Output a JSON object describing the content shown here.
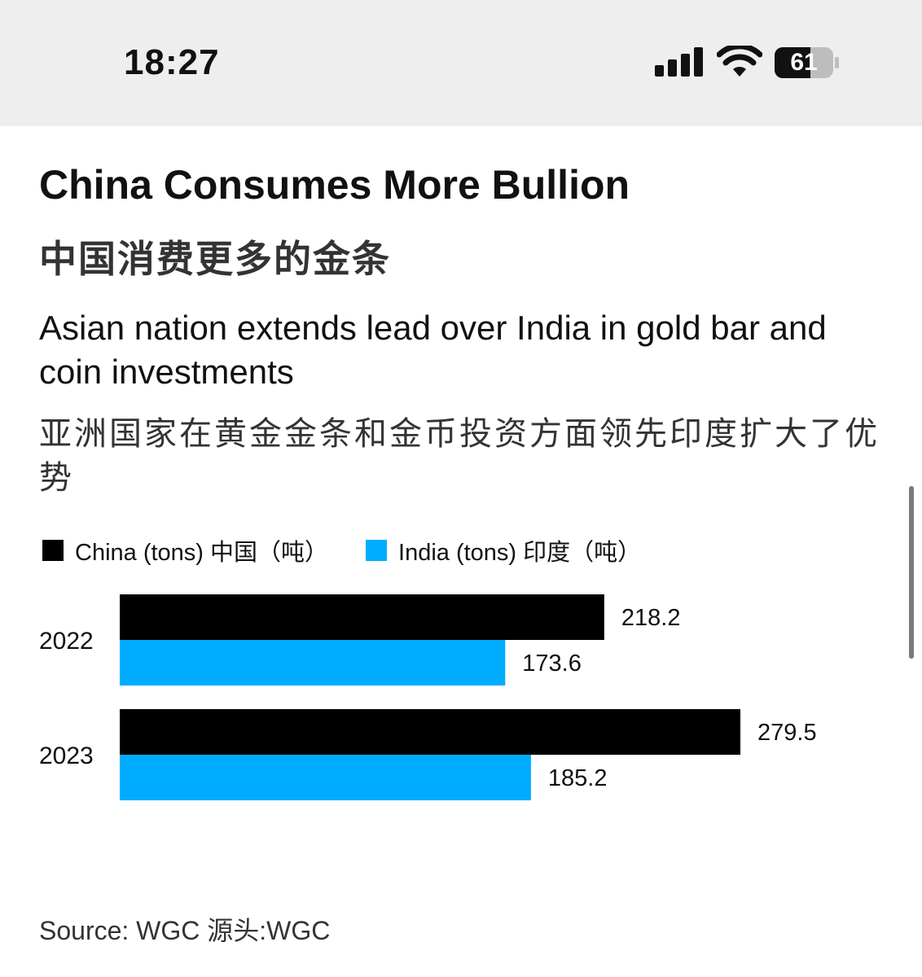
{
  "status_bar": {
    "time": "18:27",
    "battery_level": "61",
    "signal_icon": "signal-bars-icon",
    "wifi_icon": "wifi-icon",
    "battery_icon": "battery-icon"
  },
  "article": {
    "title": "China Consumes More Bullion",
    "title_zh": "中国消费更多的金条",
    "subtitle": "Asian nation extends lead over India in gold bar and coin investments",
    "subtitle_zh": "亚洲国家在黄金金条和金币投资方面领先印度扩大了优势",
    "source": "Source: WGC 源头:WGC"
  },
  "colors": {
    "china": "#000000",
    "india": "#00acff"
  },
  "chart_data": {
    "type": "bar",
    "orientation": "horizontal",
    "title": "China Consumes More Bullion",
    "categories": [
      "2022",
      "2023"
    ],
    "series": [
      {
        "name": "China (tons) 中国（吨）",
        "values": [
          218.2,
          279.5
        ],
        "labels": [
          "218.2",
          "279.5"
        ]
      },
      {
        "name": "India (tons) 印度（吨）",
        "values": [
          173.6,
          185.2
        ],
        "labels": [
          "173.6",
          "185.2"
        ]
      }
    ],
    "xlabel": "",
    "ylabel": "",
    "xlim": [
      0,
      279.5
    ],
    "grid": false,
    "legend": "top-left"
  }
}
